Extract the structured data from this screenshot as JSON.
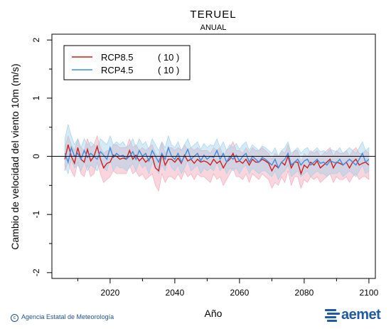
{
  "title": "TERUEL",
  "subtitle": "ANUAL",
  "footer": {
    "agency": "Agencia Estatal de Meteorología",
    "logo": "aemet",
    "logo_icon": "aemet-logo-icon"
  },
  "colors": {
    "rcp85": "#d61c1c",
    "rcp45": "#3d8ee0",
    "rcp85_band": "#f2a5b5",
    "rcp45_band": "#9fd0e8"
  },
  "chart_data": {
    "type": "line",
    "title": "TERUEL",
    "subtitle": "ANUAL",
    "xlabel": "Año",
    "ylabel": "Cambio de velocidad del viento 10m (m/s)",
    "xlim": [
      2002,
      2102
    ],
    "ylim": [
      -2.1,
      2.1
    ],
    "xticks": [
      2020,
      2040,
      2060,
      2080,
      2100
    ],
    "yticks": [
      -2,
      -1,
      0,
      1,
      2
    ],
    "grid": false,
    "legend_position": "top-left",
    "reference_line": 0,
    "series": [
      {
        "name": "RCP8.5",
        "count": "( 10 )",
        "x": [
          2006,
          2007,
          2008,
          2009,
          2010,
          2011,
          2012,
          2013,
          2014,
          2015,
          2016,
          2017,
          2018,
          2019,
          2020,
          2021,
          2022,
          2023,
          2024,
          2025,
          2026,
          2027,
          2028,
          2029,
          2030,
          2031,
          2032,
          2033,
          2034,
          2035,
          2036,
          2037,
          2038,
          2039,
          2040,
          2041,
          2042,
          2043,
          2044,
          2045,
          2046,
          2047,
          2048,
          2049,
          2050,
          2051,
          2052,
          2053,
          2054,
          2055,
          2056,
          2057,
          2058,
          2059,
          2060,
          2061,
          2062,
          2063,
          2064,
          2065,
          2066,
          2067,
          2068,
          2069,
          2070,
          2071,
          2072,
          2073,
          2074,
          2075,
          2076,
          2077,
          2078,
          2079,
          2080,
          2081,
          2082,
          2083,
          2084,
          2085,
          2086,
          2087,
          2088,
          2089,
          2090,
          2091,
          2092,
          2093,
          2094,
          2095,
          2096,
          2097,
          2098,
          2099,
          2100
        ],
        "y": [
          -0.05,
          0.2,
          0.0,
          -0.12,
          0.15,
          -0.05,
          -0.1,
          0.12,
          -0.08,
          0.0,
          0.17,
          -0.05,
          -0.2,
          -0.12,
          -0.1,
          0.02,
          0.0,
          -0.05,
          -0.03,
          -0.05,
          0.1,
          -0.05,
          0.02,
          -0.08,
          -0.02,
          -0.1,
          -0.05,
          0.0,
          -0.2,
          -0.25,
          0.05,
          -0.15,
          -0.05,
          -0.05,
          -0.1,
          -0.03,
          -0.12,
          0.02,
          -0.08,
          -0.05,
          -0.12,
          -0.05,
          -0.1,
          -0.08,
          -0.1,
          -0.15,
          -0.05,
          -0.12,
          -0.08,
          -0.2,
          -0.1,
          -0.05,
          0.05,
          -0.1,
          -0.08,
          -0.12,
          -0.05,
          -0.15,
          -0.05,
          -0.1,
          -0.1,
          -0.05,
          -0.08,
          -0.12,
          -0.25,
          -0.15,
          -0.2,
          -0.1,
          -0.15,
          0.0,
          -0.2,
          -0.1,
          -0.1,
          -0.3,
          -0.15,
          -0.2,
          -0.1,
          -0.15,
          -0.08,
          -0.2,
          -0.15,
          -0.1,
          -0.05,
          -0.2,
          -0.1,
          -0.12,
          -0.15,
          -0.1,
          -0.2,
          -0.1,
          -0.05,
          -0.15,
          -0.12,
          -0.1,
          -0.15
        ],
        "band_low": [
          -0.25,
          -0.1,
          -0.25,
          -0.35,
          -0.1,
          -0.3,
          -0.35,
          -0.15,
          -0.35,
          -0.3,
          -0.1,
          -0.3,
          -0.45,
          -0.4,
          -0.35,
          -0.25,
          -0.3,
          -0.3,
          -0.3,
          -0.3,
          -0.15,
          -0.3,
          -0.25,
          -0.35,
          -0.3,
          -0.4,
          -0.35,
          -0.3,
          -0.5,
          -0.6,
          -0.3,
          -0.45,
          -0.35,
          -0.35,
          -0.4,
          -0.3,
          -0.4,
          -0.25,
          -0.35,
          -0.3,
          -0.4,
          -0.3,
          -0.35,
          -0.35,
          -0.4,
          -0.45,
          -0.3,
          -0.4,
          -0.35,
          -0.5,
          -0.4,
          -0.3,
          -0.2,
          -0.35,
          -0.35,
          -0.4,
          -0.3,
          -0.45,
          -0.3,
          -0.35,
          -0.4,
          -0.3,
          -0.35,
          -0.4,
          -0.55,
          -0.45,
          -0.5,
          -0.35,
          -0.45,
          -0.25,
          -0.5,
          -0.35,
          -0.35,
          -0.55,
          -0.4,
          -0.45,
          -0.35,
          -0.4,
          -0.35,
          -0.45,
          -0.4,
          -0.35,
          -0.3,
          -0.45,
          -0.35,
          -0.4,
          -0.4,
          -0.35,
          -0.45,
          -0.35,
          -0.3,
          -0.4,
          -0.35,
          -0.35,
          -0.4
        ],
        "band_high": [
          0.15,
          0.35,
          0.2,
          0.1,
          0.3,
          0.15,
          0.1,
          0.3,
          0.15,
          0.2,
          0.35,
          0.15,
          0.05,
          0.1,
          0.1,
          0.2,
          0.2,
          0.15,
          0.15,
          0.15,
          0.3,
          0.15,
          0.2,
          0.1,
          0.15,
          0.1,
          0.15,
          0.2,
          0.05,
          0.0,
          0.25,
          0.05,
          0.15,
          0.15,
          0.1,
          0.15,
          0.1,
          0.2,
          0.1,
          0.15,
          0.1,
          0.15,
          0.1,
          0.1,
          0.1,
          0.05,
          0.15,
          0.1,
          0.15,
          0.0,
          0.1,
          0.15,
          0.25,
          0.1,
          0.1,
          0.05,
          0.15,
          0.05,
          0.15,
          0.1,
          0.1,
          0.15,
          0.1,
          0.05,
          -0.05,
          0.05,
          0.0,
          0.1,
          0.05,
          0.2,
          0.0,
          0.1,
          0.1,
          -0.1,
          0.05,
          0.0,
          0.1,
          0.05,
          0.1,
          0.0,
          0.05,
          0.1,
          0.15,
          0.0,
          0.1,
          0.05,
          0.05,
          0.1,
          0.0,
          0.1,
          0.15,
          0.05,
          0.05,
          0.1,
          0.05
        ]
      },
      {
        "name": "RCP4.5",
        "count": "( 10 )",
        "x": [
          2006,
          2007,
          2008,
          2009,
          2010,
          2011,
          2012,
          2013,
          2014,
          2015,
          2016,
          2017,
          2018,
          2019,
          2020,
          2021,
          2022,
          2023,
          2024,
          2025,
          2026,
          2027,
          2028,
          2029,
          2030,
          2031,
          2032,
          2033,
          2034,
          2035,
          2036,
          2037,
          2038,
          2039,
          2040,
          2041,
          2042,
          2043,
          2044,
          2045,
          2046,
          2047,
          2048,
          2049,
          2050,
          2051,
          2052,
          2053,
          2054,
          2055,
          2056,
          2057,
          2058,
          2059,
          2060,
          2061,
          2062,
          2063,
          2064,
          2065,
          2066,
          2067,
          2068,
          2069,
          2070,
          2071,
          2072,
          2073,
          2074,
          2075,
          2076,
          2077,
          2078,
          2079,
          2080,
          2081,
          2082,
          2083,
          2084,
          2085,
          2086,
          2087,
          2088,
          2089,
          2090,
          2091,
          2092,
          2093,
          2094,
          2095,
          2096,
          2097,
          2098,
          2099,
          2100
        ],
        "y": [
          0.05,
          -0.1,
          0.15,
          0.0,
          0.05,
          -0.05,
          0.1,
          -0.02,
          0.05,
          0.0,
          -0.05,
          0.08,
          0.02,
          -0.05,
          0.15,
          -0.02,
          0.05,
          0.0,
          0.02,
          -0.05,
          0.0,
          0.08,
          -0.05,
          0.1,
          0.0,
          0.05,
          -0.08,
          0.1,
          0.0,
          -0.1,
          0.05,
          -0.05,
          0.15,
          0.0,
          -0.05,
          0.05,
          -0.1,
          0.0,
          0.12,
          -0.05,
          0.0,
          0.05,
          -0.08,
          0.02,
          -0.05,
          0.0,
          -0.02,
          0.1,
          -0.05,
          0.05,
          -0.1,
          0.0,
          -0.05,
          0.02,
          -0.08,
          0.0,
          0.05,
          -0.1,
          0.0,
          -0.05,
          -0.1,
          -0.02,
          -0.05,
          -0.1,
          -0.15,
          -0.05,
          -0.2,
          -0.1,
          -0.05,
          0.05,
          -0.15,
          -0.1,
          -0.05,
          -0.15,
          -0.08,
          -0.05,
          -0.15,
          -0.1,
          -0.05,
          -0.12,
          -0.1,
          -0.15,
          -0.08,
          -0.1,
          -0.12,
          -0.05,
          -0.15,
          -0.1,
          -0.05,
          -0.1,
          -0.15,
          -0.05,
          0.05,
          -0.1,
          -0.05
        ],
        "band_low": [
          -0.15,
          -0.3,
          -0.05,
          -0.2,
          -0.15,
          -0.25,
          -0.1,
          -0.25,
          -0.15,
          -0.2,
          -0.25,
          -0.12,
          -0.2,
          -0.25,
          -0.05,
          -0.25,
          -0.15,
          -0.2,
          -0.2,
          -0.25,
          -0.2,
          -0.12,
          -0.25,
          -0.1,
          -0.2,
          -0.15,
          -0.3,
          -0.1,
          -0.2,
          -0.3,
          -0.15,
          -0.25,
          -0.05,
          -0.2,
          -0.25,
          -0.15,
          -0.3,
          -0.2,
          -0.08,
          -0.25,
          -0.2,
          -0.15,
          -0.3,
          -0.2,
          -0.25,
          -0.2,
          -0.25,
          -0.1,
          -0.25,
          -0.15,
          -0.3,
          -0.2,
          -0.25,
          -0.2,
          -0.3,
          -0.2,
          -0.15,
          -0.3,
          -0.2,
          -0.25,
          -0.3,
          -0.25,
          -0.25,
          -0.3,
          -0.35,
          -0.25,
          -0.4,
          -0.3,
          -0.25,
          -0.15,
          -0.35,
          -0.3,
          -0.25,
          -0.35,
          -0.3,
          -0.25,
          -0.35,
          -0.3,
          -0.25,
          -0.3,
          -0.3,
          -0.35,
          -0.3,
          -0.3,
          -0.3,
          -0.25,
          -0.35,
          -0.3,
          -0.25,
          -0.3,
          -0.35,
          -0.25,
          -0.15,
          -0.3,
          -0.25
        ],
        "band_high": [
          0.3,
          0.55,
          0.35,
          0.2,
          0.3,
          0.15,
          0.3,
          0.2,
          0.25,
          0.2,
          0.15,
          0.3,
          0.25,
          0.2,
          0.35,
          0.2,
          0.25,
          0.2,
          0.25,
          0.15,
          0.2,
          0.3,
          0.15,
          0.3,
          0.2,
          0.25,
          0.12,
          0.3,
          0.2,
          0.1,
          0.25,
          0.15,
          0.35,
          0.2,
          0.15,
          0.25,
          0.1,
          0.2,
          0.3,
          0.15,
          0.2,
          0.25,
          0.12,
          0.22,
          0.15,
          0.2,
          0.18,
          0.3,
          0.15,
          0.25,
          0.1,
          0.2,
          0.15,
          0.22,
          0.12,
          0.2,
          0.25,
          0.1,
          0.2,
          0.15,
          0.1,
          0.18,
          0.15,
          0.1,
          0.05,
          0.15,
          0.0,
          0.1,
          0.15,
          0.25,
          0.05,
          0.1,
          0.15,
          0.05,
          0.12,
          0.15,
          0.05,
          0.1,
          0.15,
          0.08,
          0.1,
          0.05,
          0.12,
          0.1,
          0.08,
          0.15,
          0.05,
          0.1,
          0.15,
          0.1,
          0.05,
          0.15,
          0.25,
          0.1,
          0.15
        ]
      }
    ]
  }
}
